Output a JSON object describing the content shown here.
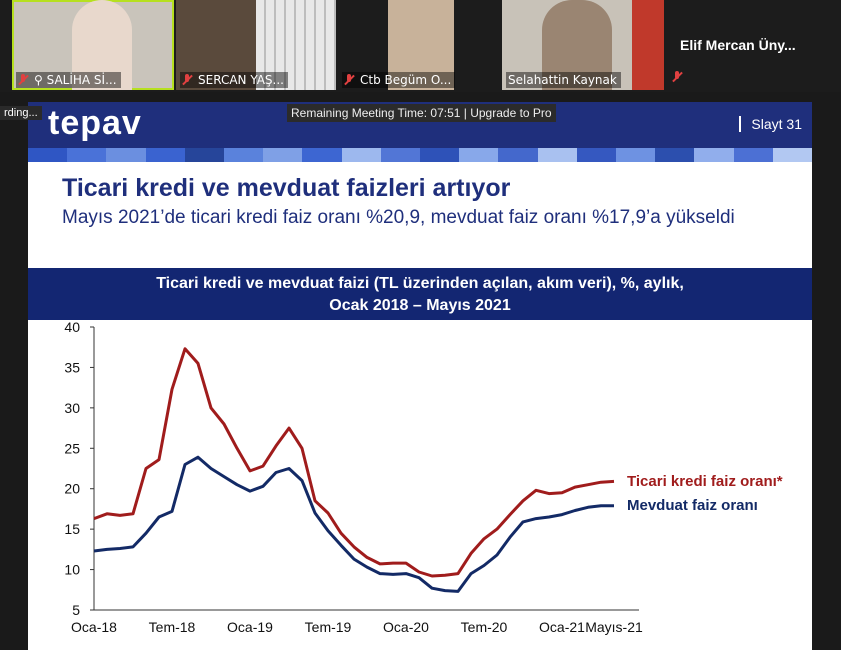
{
  "participants": [
    {
      "name": "SALİHA Sİ..."
    },
    {
      "name": "SERCAN YAŞ..."
    },
    {
      "name": "Ctb Begüm O..."
    },
    {
      "name": "Selahattin Kaynak"
    },
    {
      "name": "Elif  Mercan  Üny..."
    }
  ],
  "recording_label": "rding...",
  "meeting_timer": "Remaining Meeting Time: 07:51 | Upgrade to Pro",
  "slide": {
    "logo": "tepav",
    "slide_number": "Slayt 31",
    "title": "Ticari kredi ve mevduat faizleri artıyor",
    "subtitle": "Mayıs 2021’de ticari kredi faiz oranı %20,9, mevduat faiz oranı %17,9’a yükseldi",
    "chart_title_line1": "Ticari kredi ve mevduat faizi (TL üzerinden açılan, akım veri), %, aylık,",
    "chart_title_line2": "Ocak 2018 – Mayıs 2021"
  },
  "colors": {
    "header": "#1f2f7c",
    "banner": "#132672",
    "ticari": "#a01c1c",
    "mevduat": "#132a66"
  },
  "chart_data": {
    "type": "line",
    "x": [
      "Oca-18",
      "Şub-18",
      "Mar-18",
      "Nis-18",
      "May-18",
      "Haz-18",
      "Tem-18",
      "Ağu-18",
      "Eyl-18",
      "Eki-18",
      "Kas-18",
      "Ara-18",
      "Oca-19",
      "Şub-19",
      "Mar-19",
      "Nis-19",
      "May-19",
      "Haz-19",
      "Tem-19",
      "Ağu-19",
      "Eyl-19",
      "Eki-19",
      "Kas-19",
      "Ara-19",
      "Oca-20",
      "Şub-20",
      "Mar-20",
      "Nis-20",
      "May-20",
      "Haz-20",
      "Tem-20",
      "Ağu-20",
      "Eyl-20",
      "Eki-20",
      "Kas-20",
      "Ara-20",
      "Oca-21",
      "Şub-21",
      "Mar-21",
      "Nis-21",
      "May-21"
    ],
    "xtick_labels": [
      "Oca-18",
      "Tem-18",
      "Oca-19",
      "Tem-19",
      "Oca-20",
      "Tem-20",
      "Oca-21",
      "Mayıs-21"
    ],
    "ylim": [
      5,
      40
    ],
    "yticks": [
      5,
      10,
      15,
      20,
      25,
      30,
      35,
      40
    ],
    "series": [
      {
        "name": "Ticari kredi faiz oranı*",
        "values": [
          16.3,
          16.9,
          16.7,
          16.9,
          22.5,
          23.6,
          32.3,
          37.3,
          35.5,
          30.0,
          28.0,
          25.0,
          22.2,
          22.8,
          25.3,
          27.5,
          25.0,
          18.5,
          17.0,
          14.5,
          12.8,
          11.5,
          10.7,
          10.8,
          10.8,
          9.7,
          9.2,
          9.3,
          9.5,
          12.0,
          13.8,
          15.0,
          16.8,
          18.5,
          19.8,
          19.4,
          19.5,
          20.2,
          20.5,
          20.8,
          20.9
        ]
      },
      {
        "name": "Mevduat faiz oranı",
        "values": [
          12.3,
          12.5,
          12.6,
          12.8,
          14.5,
          16.5,
          17.2,
          23.0,
          23.9,
          22.5,
          21.5,
          20.5,
          19.7,
          20.3,
          22.0,
          22.5,
          21.0,
          17.0,
          14.8,
          13.0,
          11.3,
          10.3,
          9.5,
          9.4,
          9.5,
          9.0,
          7.7,
          7.4,
          7.3,
          9.5,
          10.5,
          11.8,
          14.0,
          15.9,
          16.3,
          16.5,
          16.8,
          17.3,
          17.7,
          17.9,
          17.9
        ]
      }
    ]
  }
}
